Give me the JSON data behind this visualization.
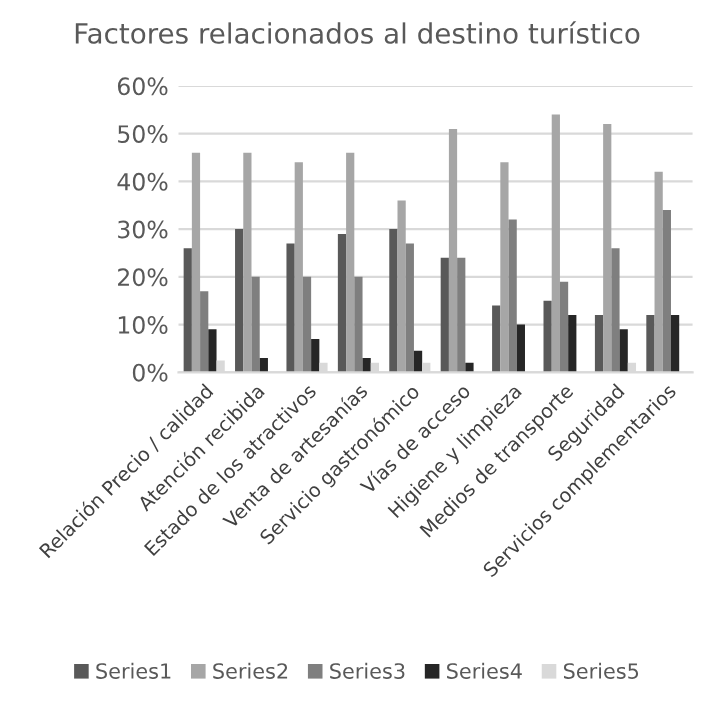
{
  "chart_data": {
    "type": "bar",
    "title": "Factores relacionados al destino turístico",
    "categories": [
      "Relación Precio / calidad",
      "Atención recibida",
      "Estado de los atractivos",
      "Venta de artesanías",
      "Servicio gastronómico",
      "Vías de acceso",
      "Higiene y limpieza",
      "Medios de transporte",
      "Seguridad",
      "Servicios complementarios"
    ],
    "series": [
      {
        "name": "Series1",
        "color": "#595959",
        "values": [
          26,
          30,
          27,
          29,
          30,
          24,
          14,
          15,
          12,
          12
        ]
      },
      {
        "name": "Series2",
        "color": "#a6a6a6",
        "values": [
          46,
          46,
          44,
          46,
          36,
          51,
          44,
          54,
          52,
          42
        ]
      },
      {
        "name": "Series3",
        "color": "#7f7f7f",
        "values": [
          17,
          20,
          20,
          20,
          27,
          24,
          32,
          19,
          26,
          34
        ]
      },
      {
        "name": "Series4",
        "color": "#262626",
        "values": [
          9,
          3,
          7,
          3,
          4.5,
          2,
          10,
          12,
          9,
          12
        ]
      },
      {
        "name": "Series5",
        "color": "#d9d9d9",
        "values": [
          2.5,
          null,
          2,
          2,
          2,
          null,
          null,
          null,
          2,
          null
        ]
      }
    ],
    "ylim": [
      0,
      60
    ],
    "yticks": [
      {
        "value": 0,
        "label": "0%"
      },
      {
        "value": 10,
        "label": "10%"
      },
      {
        "value": 20,
        "label": "20%"
      },
      {
        "value": 30,
        "label": "30%"
      },
      {
        "value": 40,
        "label": "40%"
      },
      {
        "value": 50,
        "label": "50%"
      },
      {
        "value": 60,
        "label": "60%"
      }
    ],
    "grid": "y",
    "legend": "bottom"
  }
}
